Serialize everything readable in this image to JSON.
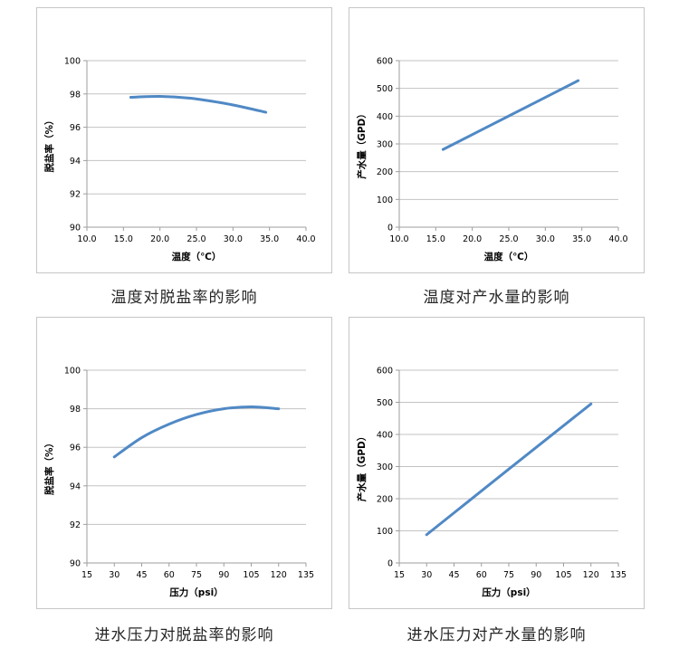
{
  "page": {
    "background": "#ffffff"
  },
  "theme": {
    "line_color": "#5089c5",
    "grid_color": "#c3c3c3",
    "axis_color": "#9e9e9e",
    "tick_text_color": "#000000",
    "label_text_color": "#000000"
  },
  "chart_data": [
    {
      "id": "temperature-vs-rejection",
      "type": "line",
      "caption": "温度对脱盐率的影响",
      "xlabel": "温度（℃）",
      "ylabel": "脱盐率（%）",
      "xlim": [
        10,
        40
      ],
      "ylim": [
        90,
        100
      ],
      "xtick_values": [
        10,
        15,
        20,
        25,
        30,
        35,
        40
      ],
      "xtick_labels": [
        "10.0",
        "15.0",
        "20.0",
        "25.0",
        "30.0",
        "35.0",
        "40.0"
      ],
      "ytick_values": [
        90,
        92,
        94,
        96,
        98,
        100
      ],
      "ytick_labels": [
        "90",
        "92",
        "94",
        "96",
        "98",
        "100"
      ],
      "grid": true,
      "legend": false,
      "series": [
        {
          "name": "脱盐率",
          "x": [
            16,
            20,
            24,
            28,
            31,
            34.5
          ],
          "y": [
            97.8,
            97.85,
            97.75,
            97.5,
            97.25,
            96.9
          ]
        }
      ]
    },
    {
      "id": "temperature-vs-flow",
      "type": "line",
      "caption": "温度对产水量的影响",
      "xlabel": "温度（℃）",
      "ylabel": "产水量（GPD）",
      "xlim": [
        10,
        40
      ],
      "ylim": [
        0,
        600
      ],
      "xtick_values": [
        10,
        15,
        20,
        25,
        30,
        35,
        40
      ],
      "xtick_labels": [
        "10.0",
        "15.0",
        "20.0",
        "25.0",
        "30.0",
        "35.0",
        "40.0"
      ],
      "ytick_values": [
        0,
        100,
        200,
        300,
        400,
        500,
        600
      ],
      "ytick_labels": [
        "0",
        "100",
        "200",
        "300",
        "400",
        "500",
        "600"
      ],
      "grid": true,
      "legend": false,
      "series": [
        {
          "name": "产水量",
          "x": [
            16,
            25.25,
            34.5
          ],
          "y": [
            280,
            404,
            528
          ]
        }
      ]
    },
    {
      "id": "pressure-vs-rejection",
      "type": "line",
      "caption": "进水压力对脱盐率的影响",
      "xlabel": "压力（psi）",
      "ylabel": "脱盐率（%）",
      "xlim": [
        15,
        135
      ],
      "ylim": [
        90,
        100
      ],
      "xtick_values": [
        15,
        30,
        45,
        60,
        75,
        90,
        105,
        120,
        135
      ],
      "xtick_labels": [
        "15",
        "30",
        "45",
        "60",
        "75",
        "90",
        "105",
        "120",
        "135"
      ],
      "ytick_values": [
        90,
        92,
        94,
        96,
        98,
        100
      ],
      "ytick_labels": [
        "90",
        "92",
        "94",
        "96",
        "98",
        "100"
      ],
      "grid": true,
      "legend": false,
      "series": [
        {
          "name": "脱盐率",
          "x": [
            30,
            45,
            60,
            75,
            90,
            105,
            120
          ],
          "y": [
            95.5,
            96.5,
            97.2,
            97.7,
            98.0,
            98.1,
            98.0
          ]
        }
      ]
    },
    {
      "id": "pressure-vs-flow",
      "type": "line",
      "caption": "进水压力对产水量的影响",
      "xlabel": "压力（psi）",
      "ylabel": "产水量（GPD）",
      "xlim": [
        15,
        135
      ],
      "ylim": [
        0,
        600
      ],
      "xtick_values": [
        15,
        30,
        45,
        60,
        75,
        90,
        105,
        120,
        135
      ],
      "xtick_labels": [
        "15",
        "30",
        "45",
        "60",
        "75",
        "90",
        "105",
        "120",
        "135"
      ],
      "ytick_values": [
        0,
        100,
        200,
        300,
        400,
        500,
        600
      ],
      "ytick_labels": [
        "0",
        "100",
        "200",
        "300",
        "400",
        "500",
        "600"
      ],
      "grid": true,
      "legend": false,
      "series": [
        {
          "name": "产水量",
          "x": [
            30,
            75,
            120
          ],
          "y": [
            88,
            292,
            495
          ]
        }
      ]
    }
  ]
}
